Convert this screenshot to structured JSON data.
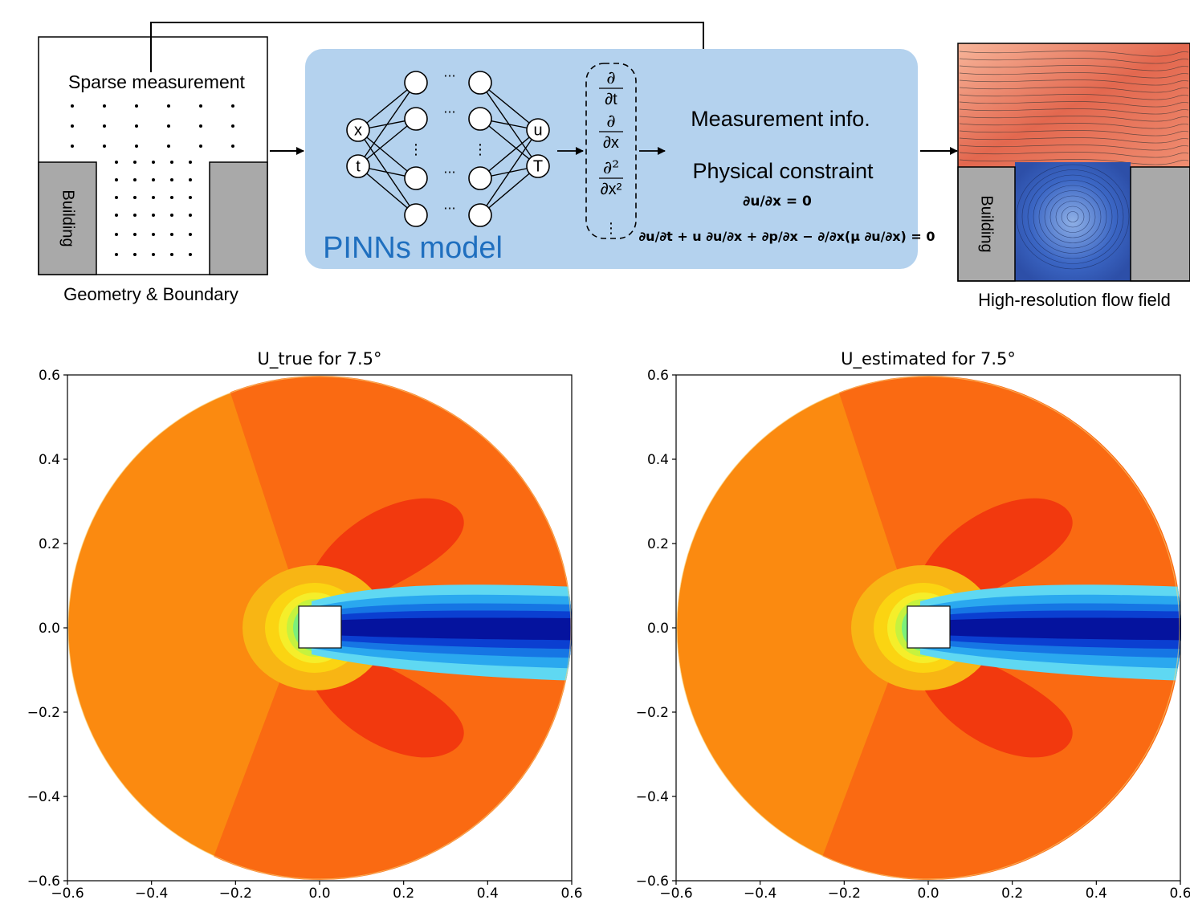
{
  "diagram": {
    "geometry": {
      "sparse_label": "Sparse measurement",
      "building_label": "Building",
      "caption": "Geometry & Boundary"
    },
    "pinns": {
      "model_label": "PINNs model",
      "inputs": [
        "x",
        "t"
      ],
      "outputs": [
        "u",
        "T"
      ],
      "ellipsis": "···",
      "vdots": "⋮",
      "operators": [
        {
          "num": "∂",
          "den": "∂t"
        },
        {
          "num": "∂",
          "den": "∂x"
        },
        {
          "num": "∂²",
          "den": "∂x²"
        }
      ],
      "measurement_info": "Measurement info.",
      "physical_constraint": "Physical constraint",
      "equation_continuity": "∂u/∂x = 0",
      "equation_momentum": "∂u/∂t + u ∂u/∂x + ∂p/∂x − ∂/∂x(μ ∂u/∂x) = 0"
    },
    "flow": {
      "building_label": "Building",
      "caption": "High-resolution flow field"
    },
    "colors": {
      "panel_blue": "#b4d2ee",
      "building_gray": "#a9a9a9",
      "pinns_text_blue": "#1f6fbf"
    }
  },
  "chart_data": [
    {
      "type": "contour",
      "title": "U_true for 7.5°",
      "xlim": [
        -0.6,
        0.6
      ],
      "ylim": [
        -0.6,
        0.6
      ],
      "xticks": [
        "−0.6",
        "−0.4",
        "−0.2",
        "0.0",
        "0.2",
        "0.4",
        "0.6"
      ],
      "yticks": [
        "0.6",
        "0.4",
        "0.2",
        "0.0",
        "−0.2",
        "−0.4",
        "−0.6"
      ],
      "colormap": "jet"
    },
    {
      "type": "contour",
      "title": "U_estimated for 7.5°",
      "xlim": [
        -0.6,
        0.6
      ],
      "ylim": [
        -0.6,
        0.6
      ],
      "xticks": [
        "−0.6",
        "−0.4",
        "−0.2",
        "0.0",
        "0.2",
        "0.4",
        "0.6"
      ],
      "yticks": [
        "0.6",
        "0.4",
        "0.2",
        "0.0",
        "−0.2",
        "−0.4",
        "−0.6"
      ],
      "colormap": "jet"
    }
  ]
}
